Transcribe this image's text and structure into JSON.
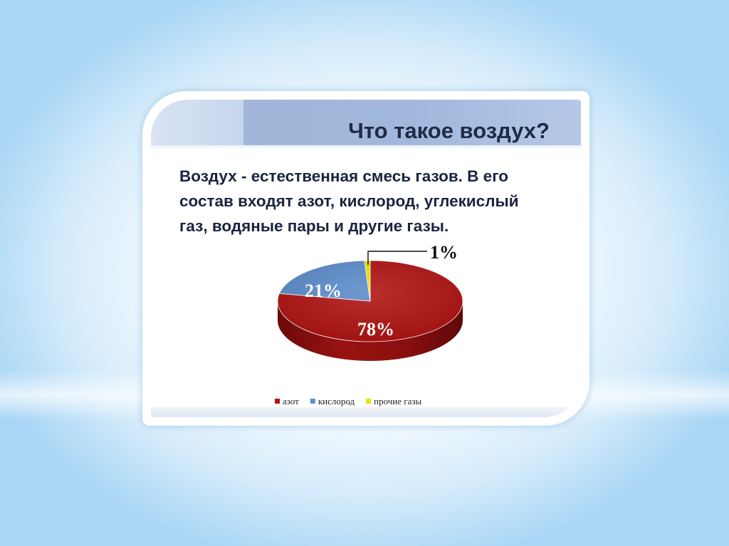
{
  "slide": {
    "title": "Что такое воздух?",
    "body": "Воздух - естественная смесь газов. В его состав входят азот, кислород, углекислый газ, водяные пары и другие газы."
  },
  "chart_data": {
    "type": "pie",
    "title": "",
    "slices": [
      {
        "name": "азот",
        "value": 78,
        "label": "78%",
        "color": "#b31616"
      },
      {
        "name": "кислород",
        "value": 21,
        "label": "21%",
        "color": "#5f8fcc"
      },
      {
        "name": "прочие газы",
        "value": 1,
        "label": "1%",
        "color": "#e6e600"
      }
    ],
    "legend_position": "bottom",
    "style": "3d"
  }
}
